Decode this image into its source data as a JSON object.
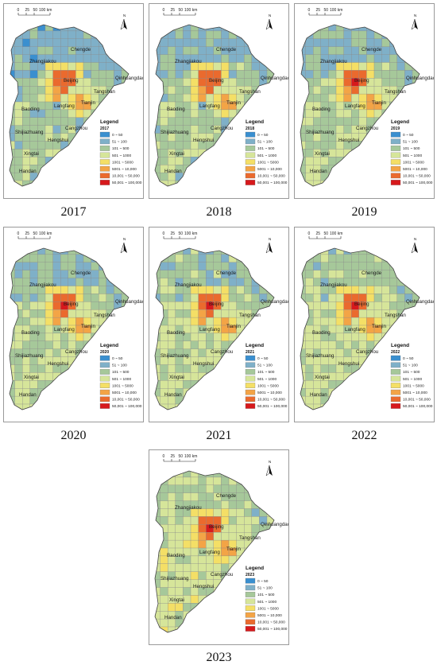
{
  "scalebar": {
    "ticks": [
      "0",
      "25",
      "50"
    ],
    "unit_label": "100 km"
  },
  "north_label": "N",
  "legend": {
    "title": "Legend",
    "classes": [
      {
        "label": "0 ~ 50",
        "color": "#3a8fcf"
      },
      {
        "label": "51 ~ 100",
        "color": "#7fb0c8"
      },
      {
        "label": "101 ~ 500",
        "color": "#a6c89a"
      },
      {
        "label": "501 ~ 1000",
        "color": "#d6e59a"
      },
      {
        "label": "1001 ~ 5000",
        "color": "#f4df66"
      },
      {
        "label": "5001 ~ 10,000",
        "color": "#f3a446"
      },
      {
        "label": "10,001 ~ 50,000",
        "color": "#ea6a2e"
      },
      {
        "label": "50,001 ~ 100,000",
        "color": "#d7191c"
      }
    ]
  },
  "cities": [
    "Chengde",
    "Zhangjiakou",
    "Qinhuangdao",
    "Beijing",
    "Tangshan",
    "Tianjin",
    "Langfang",
    "Baoding",
    "Cangzhou",
    "Shijiazhuang",
    "Hengshui",
    "Xingtai",
    "Handan"
  ],
  "panels": [
    {
      "year": "2017",
      "caption": "2017"
    },
    {
      "year": "2018",
      "caption": "2018"
    },
    {
      "year": "2019",
      "caption": "2019"
    },
    {
      "year": "2020",
      "caption": "2020"
    },
    {
      "year": "2021",
      "caption": "2021"
    },
    {
      "year": "2022",
      "caption": "2022"
    },
    {
      "year": "2023",
      "caption": "2023"
    }
  ]
}
